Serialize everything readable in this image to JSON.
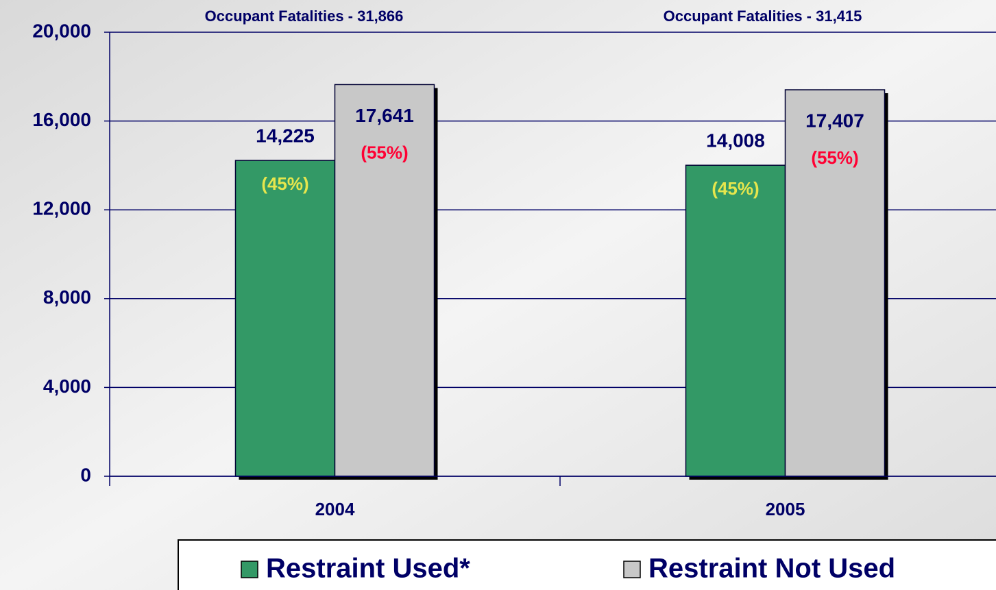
{
  "chart_data": {
    "type": "bar",
    "annotations": [
      "Occupant Fatalities - 31,866",
      "Occupant Fatalities - 31,415"
    ],
    "categories": [
      "2004",
      "2005"
    ],
    "series": [
      {
        "name": "Restraint Used*",
        "color": "#339966",
        "values": [
          14225,
          14008
        ],
        "value_labels": [
          "14,225",
          "14,008"
        ],
        "percent_labels": [
          "(45%)",
          "(45%)"
        ],
        "percent_color": "#e6e64d"
      },
      {
        "name": "Restraint Not Used",
        "color": "#c8c8c8",
        "values": [
          17641,
          17407
        ],
        "value_labels": [
          "17,641",
          "17,407"
        ],
        "percent_labels": [
          "(55%)",
          "(55%)"
        ],
        "percent_color": "#ff0033"
      }
    ],
    "ylim": [
      0,
      20000
    ],
    "yticks": [
      0,
      {
        "value": 4000,
        "label": "4,000"
      },
      {
        "value": 8000,
        "label": "8,000"
      },
      {
        "value": 12000,
        "label": "12,000"
      },
      {
        "value": 16000,
        "label": "16,000"
      },
      {
        "value": 20000,
        "label": "20,000"
      }
    ],
    "grid": true
  }
}
